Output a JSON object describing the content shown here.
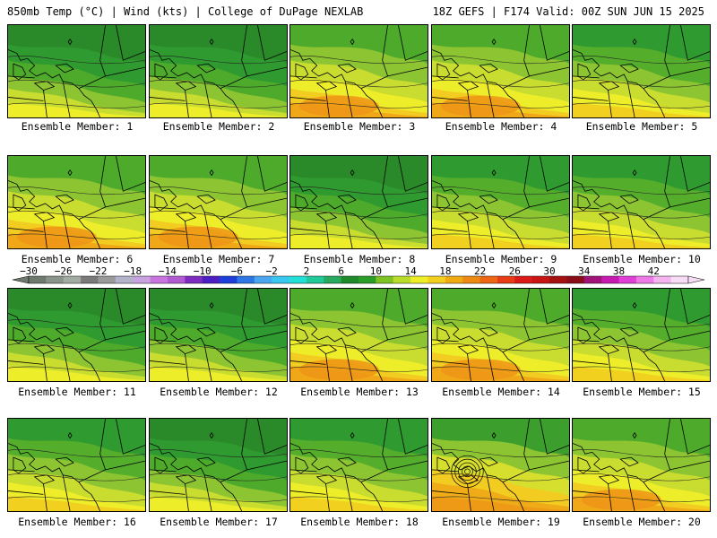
{
  "header": {
    "left": "850mb Temp (°C) | Wind (kts) | College of DuPage NEXLAB",
    "right": "18Z GEFS | F174 Valid: 00Z SUN JUN 15 2025"
  },
  "member_label_prefix": "Ensemble Member: ",
  "members": [
    {
      "number": "1",
      "pattern": "cool"
    },
    {
      "number": "2",
      "pattern": "cool"
    },
    {
      "number": "3",
      "pattern": "warm"
    },
    {
      "number": "4",
      "pattern": "warm"
    },
    {
      "number": "5",
      "pattern": "mid"
    },
    {
      "number": "6",
      "pattern": "warm"
    },
    {
      "number": "7",
      "pattern": "warm"
    },
    {
      "number": "8",
      "pattern": "cool"
    },
    {
      "number": "9",
      "pattern": "mid"
    },
    {
      "number": "10",
      "pattern": "mid"
    },
    {
      "number": "11",
      "pattern": "cool"
    },
    {
      "number": "12",
      "pattern": "cool"
    },
    {
      "number": "13",
      "pattern": "warm"
    },
    {
      "number": "14",
      "pattern": "warm"
    },
    {
      "number": "15",
      "pattern": "mid"
    },
    {
      "number": "16",
      "pattern": "mid"
    },
    {
      "number": "17",
      "pattern": "cool"
    },
    {
      "number": "18",
      "pattern": "mid"
    },
    {
      "number": "19",
      "pattern": "low"
    },
    {
      "number": "20",
      "pattern": "warm"
    }
  ],
  "colorbar": {
    "tick_labels": [
      "−30",
      "−26",
      "−22",
      "−18",
      "−14",
      "−10",
      "−6",
      "−2",
      "2",
      "6",
      "10",
      "14",
      "18",
      "22",
      "26",
      "30",
      "34",
      "38",
      "42"
    ],
    "colors": [
      "#6e7a6e",
      "#8a948a",
      "#a3aba3",
      "#7a7a7a",
      "#9a9a9a",
      "#b3b3c9",
      "#c9a3dd",
      "#c875e0",
      "#b25ad1",
      "#7d2cbf",
      "#4b1fc4",
      "#1f3fdc",
      "#2d76e6",
      "#4aa6ef",
      "#38c8ef",
      "#22e0d8",
      "#20c89a",
      "#27a960",
      "#1f8a2c",
      "#2a9c28",
      "#7ec224",
      "#b9dc2a",
      "#eeee28",
      "#f3cf1f",
      "#f1aa14",
      "#ee8a12",
      "#ee6614",
      "#e73c16",
      "#dd1a1a",
      "#c81414",
      "#a51010",
      "#8a0c18",
      "#a0147a",
      "#c81ab0",
      "#e040d8",
      "#ee7ae8",
      "#f4b4f0",
      "#f8dcf6"
    ]
  }
}
